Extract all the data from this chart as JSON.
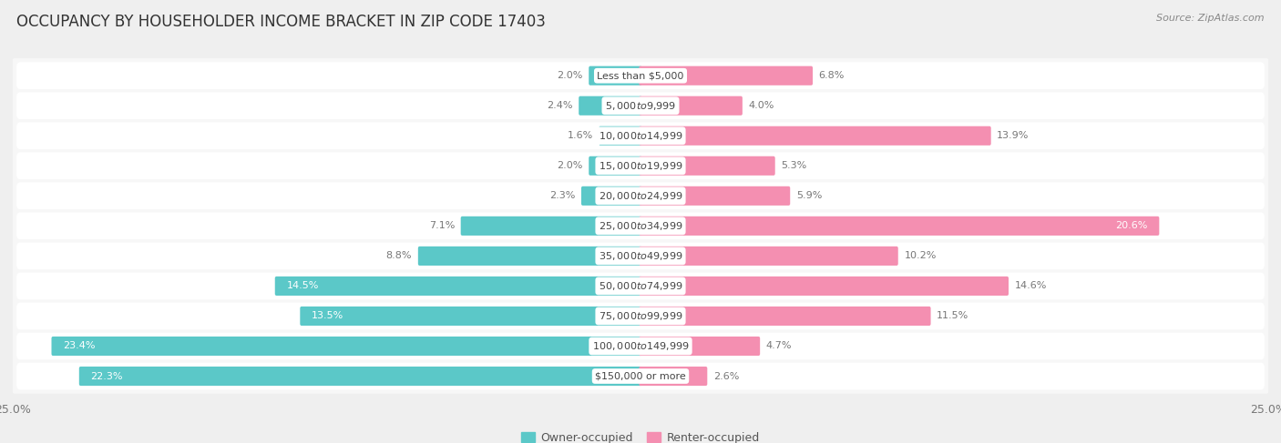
{
  "title": "OCCUPANCY BY HOUSEHOLDER INCOME BRACKET IN ZIP CODE 17403",
  "source": "Source: ZipAtlas.com",
  "categories": [
    "Less than $5,000",
    "$5,000 to $9,999",
    "$10,000 to $14,999",
    "$15,000 to $19,999",
    "$20,000 to $24,999",
    "$25,000 to $34,999",
    "$35,000 to $49,999",
    "$50,000 to $74,999",
    "$75,000 to $99,999",
    "$100,000 to $149,999",
    "$150,000 or more"
  ],
  "owner_values": [
    2.0,
    2.4,
    1.6,
    2.0,
    2.3,
    7.1,
    8.8,
    14.5,
    13.5,
    23.4,
    22.3
  ],
  "renter_values": [
    6.8,
    4.0,
    13.9,
    5.3,
    5.9,
    20.6,
    10.2,
    14.6,
    11.5,
    4.7,
    2.6
  ],
  "owner_color": "#5bc8c8",
  "renter_color": "#f48fb1",
  "xlim": 25.0,
  "background_color": "#efefef",
  "bar_bg_color": "#ffffff",
  "row_bg_color": "#f7f7f7",
  "title_fontsize": 12,
  "label_fontsize": 8,
  "value_fontsize": 8,
  "tick_fontsize": 9,
  "legend_fontsize": 9,
  "source_fontsize": 8
}
